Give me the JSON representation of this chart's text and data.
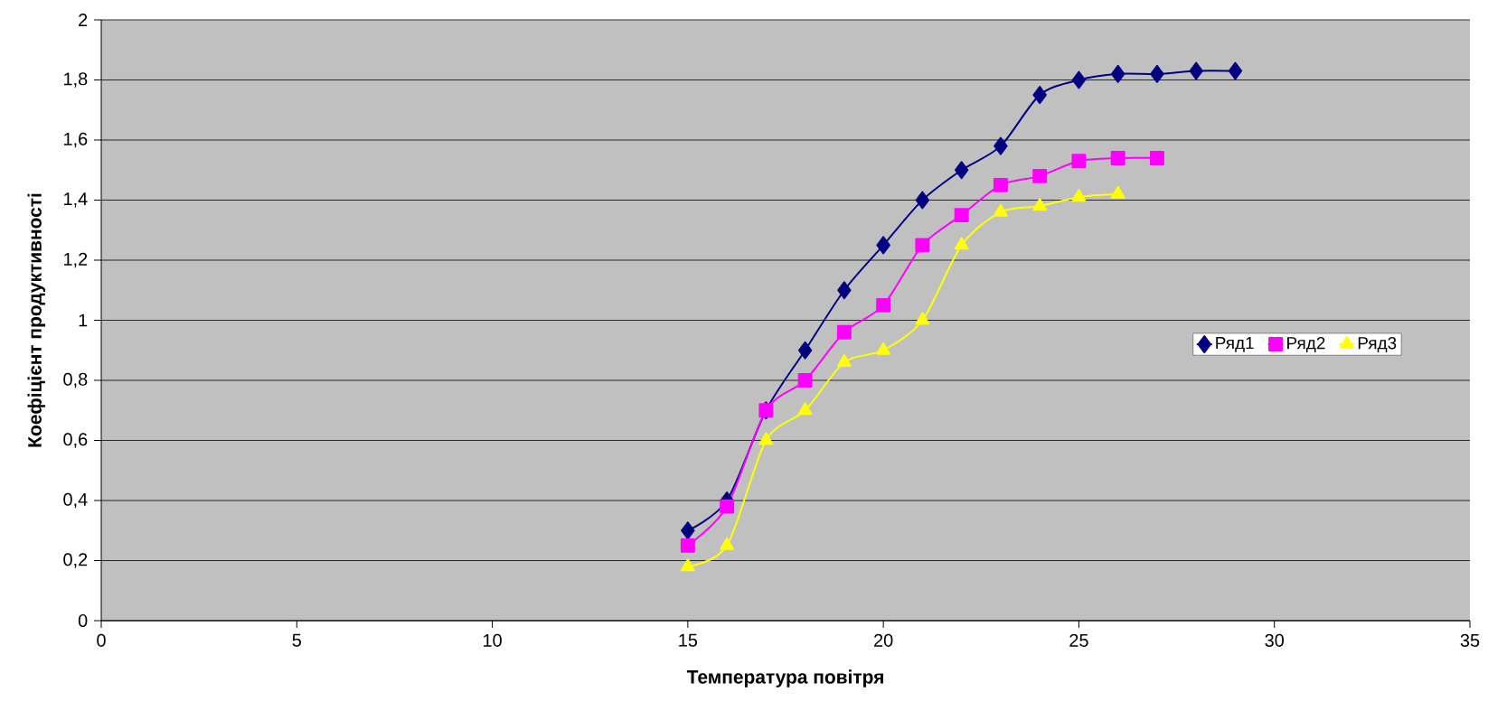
{
  "chart_data": {
    "type": "line",
    "xlabel": "Температура повітря",
    "ylabel": "Коефіцієнт продуктивності",
    "series": [
      {
        "name": "Ряд1",
        "color": "#000080",
        "marker": "diamond",
        "x": [
          15,
          16,
          17,
          18,
          19,
          20,
          21,
          22,
          23,
          24,
          25,
          26,
          27,
          28,
          29
        ],
        "values": [
          0.3,
          0.4,
          0.7,
          0.9,
          1.1,
          1.25,
          1.4,
          1.5,
          1.58,
          1.75,
          1.8,
          1.82,
          1.82,
          1.83,
          1.83
        ]
      },
      {
        "name": "Ряд2",
        "color": "#ff00ff",
        "marker": "square",
        "x": [
          15,
          16,
          17,
          18,
          19,
          20,
          21,
          22,
          23,
          24,
          25,
          26,
          27
        ],
        "values": [
          0.25,
          0.38,
          0.7,
          0.8,
          0.96,
          1.05,
          1.25,
          1.35,
          1.45,
          1.48,
          1.53,
          1.54,
          1.54
        ]
      },
      {
        "name": "Ряд3",
        "color": "#ffff00",
        "marker": "triangle",
        "x": [
          15,
          16,
          17,
          18,
          19,
          20,
          21,
          22,
          23,
          24,
          25,
          26
        ],
        "values": [
          0.18,
          0.25,
          0.6,
          0.7,
          0.86,
          0.9,
          1.0,
          1.25,
          1.36,
          1.38,
          1.41,
          1.42
        ]
      }
    ],
    "xlim": [
      0,
      35
    ],
    "xticks": [
      0,
      5,
      10,
      15,
      20,
      25,
      30,
      35
    ],
    "ylim": [
      0,
      2
    ],
    "yticks": [
      0,
      {
        "value": 0.2,
        "label": "0,2"
      },
      {
        "value": 0.4,
        "label": "0,4"
      },
      {
        "value": 0.6,
        "label": "0,6"
      },
      {
        "value": 0.8,
        "label": "0,8"
      },
      1,
      {
        "value": 1.2,
        "label": "1,2"
      },
      {
        "value": 1.4,
        "label": "1,4"
      },
      {
        "value": 1.6,
        "label": "1,6"
      },
      {
        "value": 1.8,
        "label": "1,8"
      },
      2
    ],
    "grid": "y",
    "legend": "right",
    "line_style": "solid"
  }
}
